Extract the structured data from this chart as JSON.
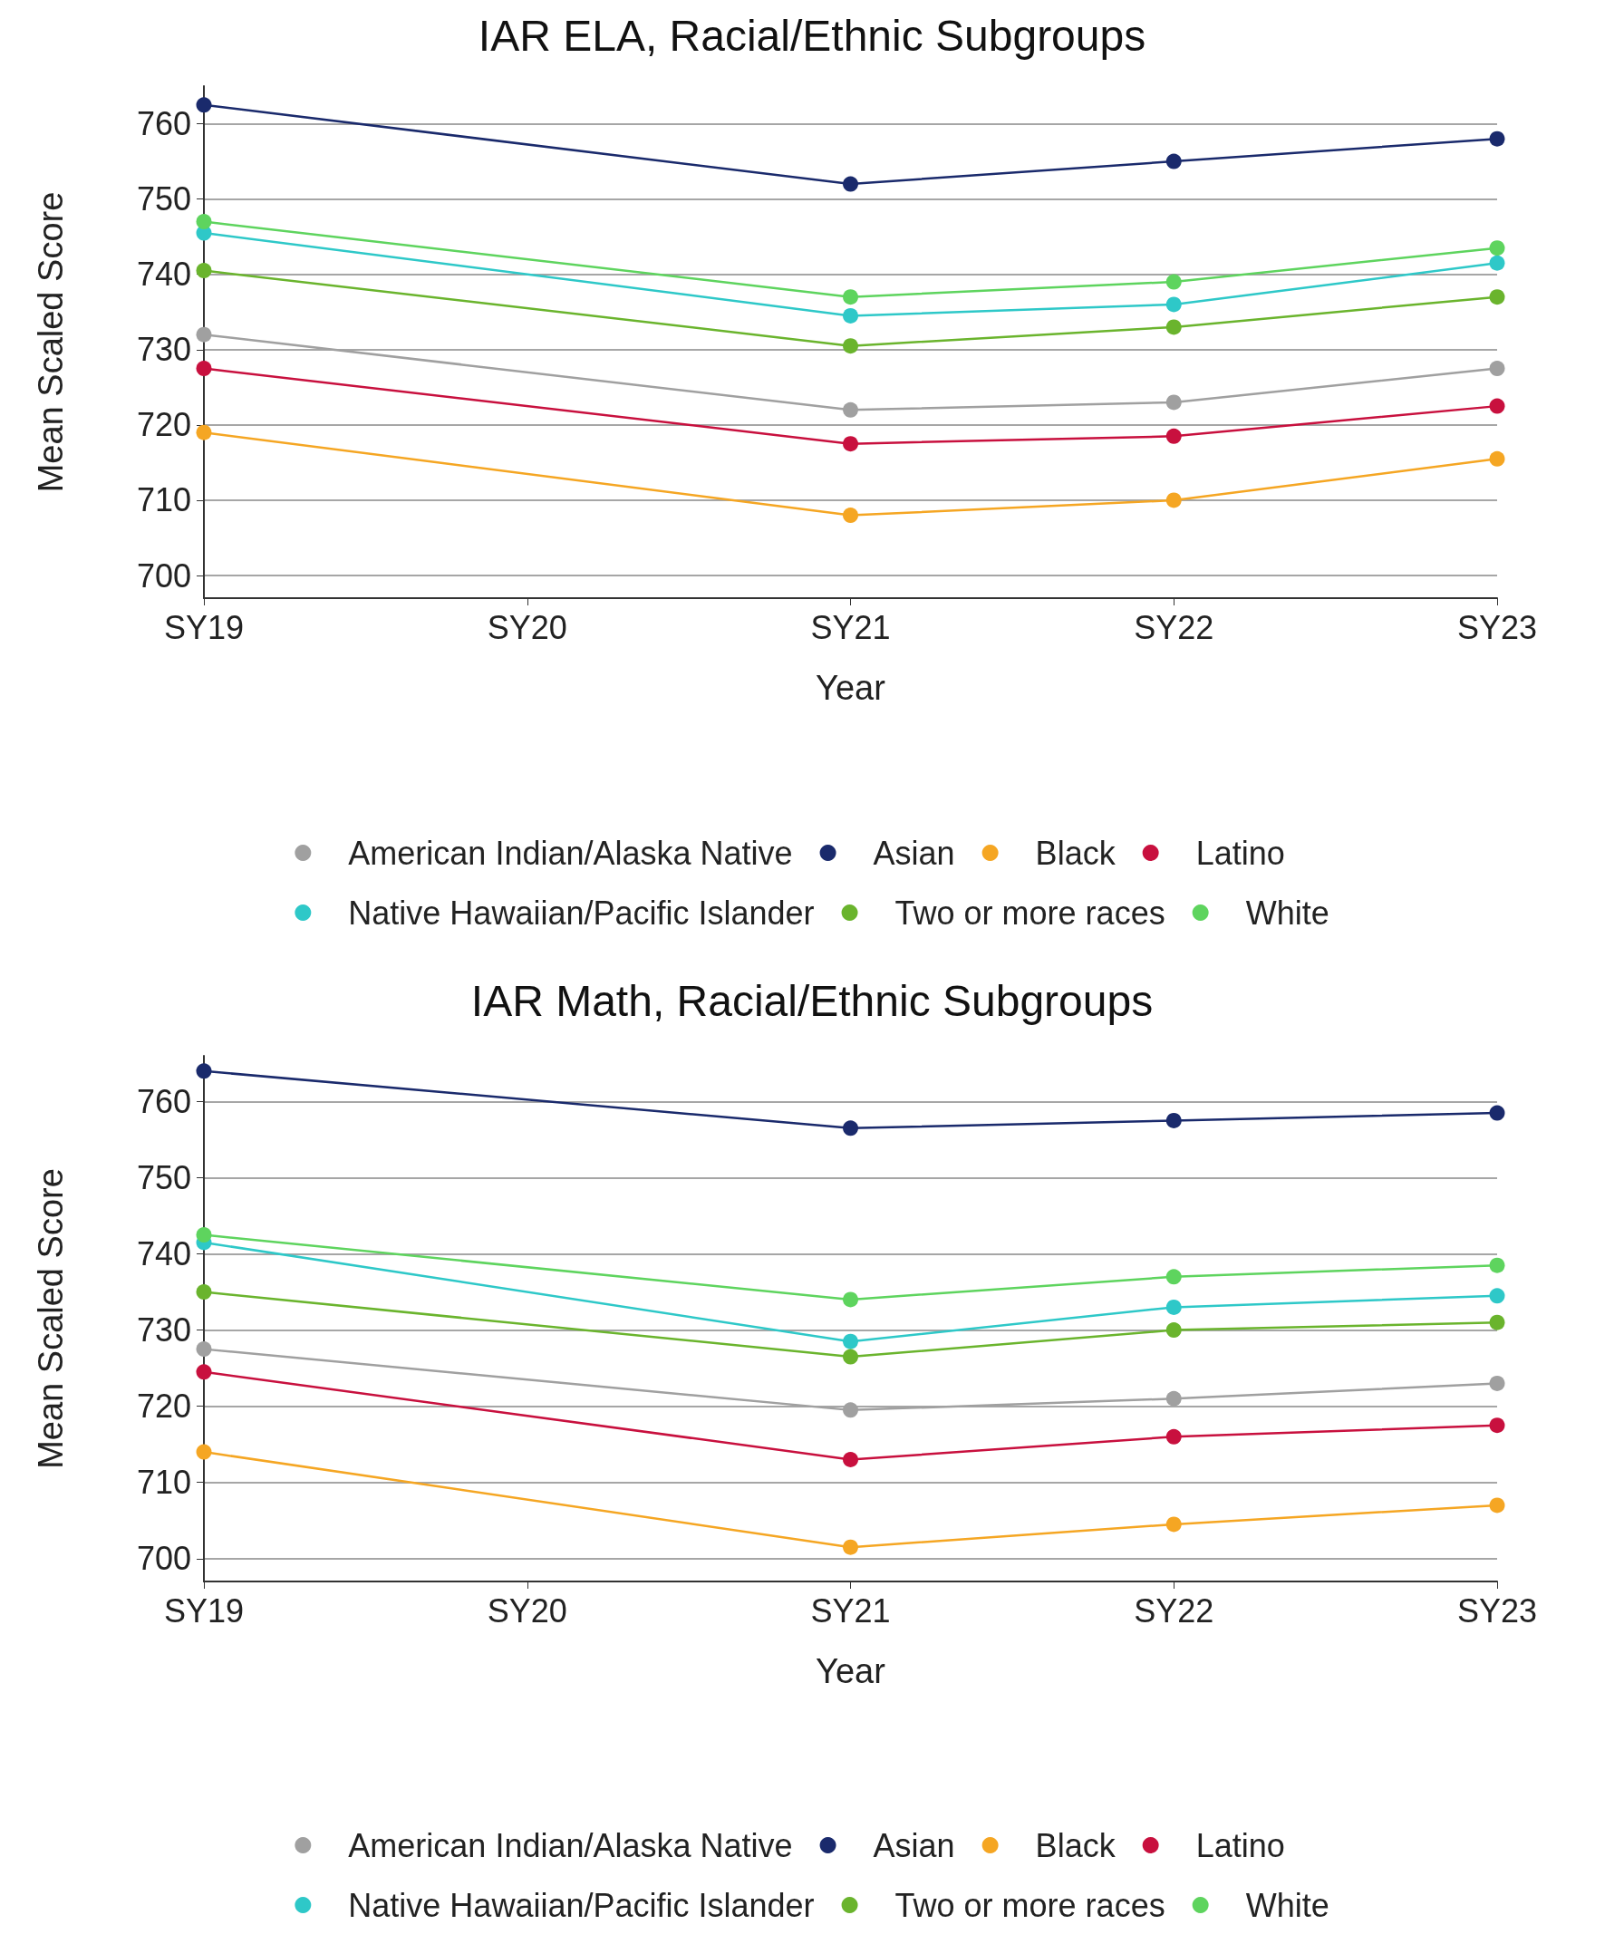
{
  "chart_data": [
    {
      "type": "line",
      "title": "IAR ELA, Racial/Ethnic Subgroups",
      "xlabel": "Year",
      "ylabel": "Mean Scaled Score",
      "categories": [
        "SY19",
        "SY20",
        "SY21",
        "SY22",
        "SY23"
      ],
      "ylim": [
        697,
        765
      ],
      "yticks": [
        700,
        710,
        720,
        730,
        740,
        750,
        760
      ],
      "grid": "y",
      "legend": "bottom",
      "marker": "circle",
      "series": [
        {
          "name": "American Indian/Alaska Native",
          "color": "#a0a0a0",
          "x": [
            "SY19",
            "SY21",
            "SY22",
            "SY23"
          ],
          "values": [
            732,
            722,
            723,
            727.5
          ]
        },
        {
          "name": "Asian",
          "color": "#1a2a6c",
          "x": [
            "SY19",
            "SY21",
            "SY22",
            "SY23"
          ],
          "values": [
            762.5,
            752,
            755,
            758
          ]
        },
        {
          "name": "Black",
          "color": "#f5a623",
          "x": [
            "SY19",
            "SY21",
            "SY22",
            "SY23"
          ],
          "values": [
            719,
            708,
            710,
            715.5
          ]
        },
        {
          "name": "Latino",
          "color": "#c8103e",
          "x": [
            "SY19",
            "SY21",
            "SY22",
            "SY23"
          ],
          "values": [
            727.5,
            717.5,
            718.5,
            722.5
          ]
        },
        {
          "name": "Native Hawaiian/Pacific Islander",
          "color": "#2ec8c8",
          "x": [
            "SY19",
            "SY21",
            "SY22",
            "SY23"
          ],
          "values": [
            745.5,
            734.5,
            736,
            741.5
          ]
        },
        {
          "name": "Two or more races",
          "color": "#6ab42d",
          "x": [
            "SY19",
            "SY21",
            "SY22",
            "SY23"
          ],
          "values": [
            740.5,
            730.5,
            733,
            737
          ]
        },
        {
          "name": "White",
          "color": "#5ed45e",
          "x": [
            "SY19",
            "SY21",
            "SY22",
            "SY23"
          ],
          "values": [
            747,
            737,
            739,
            743.5
          ]
        }
      ]
    },
    {
      "type": "line",
      "title": "IAR Math, Racial/Ethnic Subgroups",
      "xlabel": "Year",
      "ylabel": "Mean Scaled Score",
      "categories": [
        "SY19",
        "SY20",
        "SY21",
        "SY22",
        "SY23"
      ],
      "ylim": [
        697,
        766
      ],
      "yticks": [
        700,
        710,
        720,
        730,
        740,
        750,
        760
      ],
      "grid": "y",
      "legend": "bottom",
      "marker": "circle",
      "series": [
        {
          "name": "American Indian/Alaska Native",
          "color": "#a0a0a0",
          "x": [
            "SY19",
            "SY21",
            "SY22",
            "SY23"
          ],
          "values": [
            727.5,
            719.5,
            721,
            723
          ]
        },
        {
          "name": "Asian",
          "color": "#1a2a6c",
          "x": [
            "SY19",
            "SY21",
            "SY22",
            "SY23"
          ],
          "values": [
            764,
            756.5,
            757.5,
            758.5
          ]
        },
        {
          "name": "Black",
          "color": "#f5a623",
          "x": [
            "SY19",
            "SY21",
            "SY22",
            "SY23"
          ],
          "values": [
            714,
            701.5,
            704.5,
            707
          ]
        },
        {
          "name": "Latino",
          "color": "#c8103e",
          "x": [
            "SY19",
            "SY21",
            "SY22",
            "SY23"
          ],
          "values": [
            724.5,
            713,
            716,
            717.5
          ]
        },
        {
          "name": "Native Hawaiian/Pacific Islander",
          "color": "#2ec8c8",
          "x": [
            "SY19",
            "SY21",
            "SY22",
            "SY23"
          ],
          "values": [
            741.5,
            728.5,
            733,
            734.5
          ]
        },
        {
          "name": "Two or more races",
          "color": "#6ab42d",
          "x": [
            "SY19",
            "SY21",
            "SY22",
            "SY23"
          ],
          "values": [
            735,
            726.5,
            730,
            731
          ]
        },
        {
          "name": "White",
          "color": "#5ed45e",
          "x": [
            "SY19",
            "SY21",
            "SY22",
            "SY23"
          ],
          "values": [
            742.5,
            734,
            737,
            738.5
          ]
        }
      ]
    }
  ]
}
